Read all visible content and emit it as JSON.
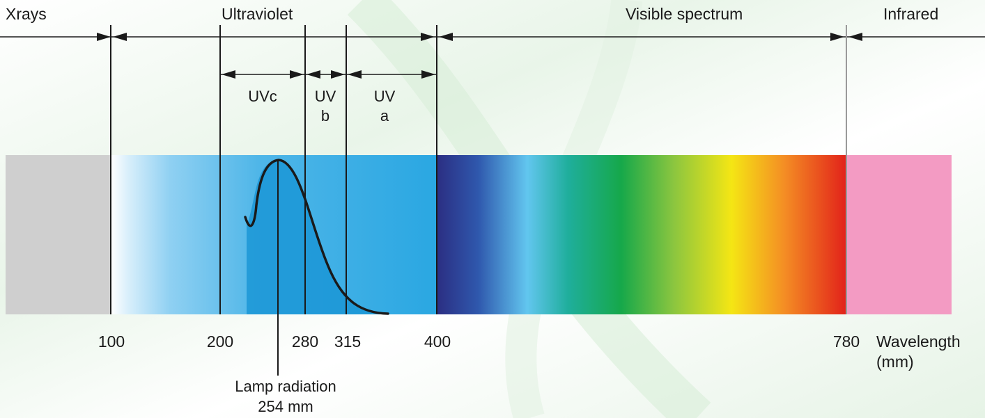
{
  "regions": [
    {
      "key": "xrays",
      "label": "Xrays",
      "start_nm": 0,
      "end_nm": 100,
      "color": "#cfcfcf"
    },
    {
      "key": "ultraviolet",
      "label": "Ultraviolet",
      "start_nm": 100,
      "end_nm": 400,
      "color": "#2aa7e2"
    },
    {
      "key": "visible",
      "label": "Visible spectrum",
      "start_nm": 400,
      "end_nm": 780
    },
    {
      "key": "infrared",
      "label": "Infrared",
      "start_nm": 780,
      "end_nm": 870,
      "color": "#f39bc3"
    }
  ],
  "uv_bands": [
    {
      "key": "uvc",
      "lines": [
        "UVc"
      ],
      "start_nm": 200,
      "end_nm": 280
    },
    {
      "key": "uvb",
      "lines": [
        "UV",
        "b"
      ],
      "start_nm": 280,
      "end_nm": 315
    },
    {
      "key": "uva",
      "lines": [
        "UV",
        "a"
      ],
      "start_nm": 315,
      "end_nm": 400
    }
  ],
  "ticks": [
    "100",
    "200",
    "280",
    "315",
    "400",
    "780"
  ],
  "axis_label": [
    "Wavelength",
    "(mm)"
  ],
  "lamp": {
    "lines": [
      "Lamp radiation",
      "254 mm"
    ],
    "peak_nm": 254
  },
  "colors": {
    "line": "#1a1a1a",
    "uv_light": "#8fd0f2",
    "uv_mid": "#4fb6e8",
    "uv_dark": "#2aa7e2",
    "lamp_fill": "#1b97d6",
    "background_wash": "#e4f2e4"
  }
}
